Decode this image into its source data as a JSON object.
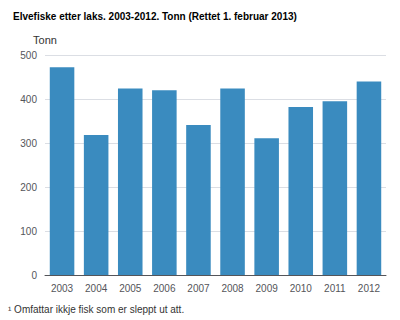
{
  "chart_data": {
    "type": "bar",
    "title": "Elvefiske etter laks. 2003-2012. Tonn (Rettet 1. februar 2013)",
    "ylabel": "Tonn",
    "footnote": "¹ Omfattar ikkje fisk som er sleppt ut att.",
    "categories": [
      "2003",
      "2004",
      "2005",
      "2006",
      "2007",
      "2008",
      "2009",
      "2010",
      "2011",
      "2012"
    ],
    "values": [
      472,
      318,
      424,
      420,
      341,
      424,
      311,
      382,
      395,
      440
    ],
    "color": "#3a8bbf",
    "ylim": [
      0,
      500
    ],
    "yticks": [
      0,
      100,
      200,
      300,
      400,
      500
    ],
    "grid": true
  }
}
